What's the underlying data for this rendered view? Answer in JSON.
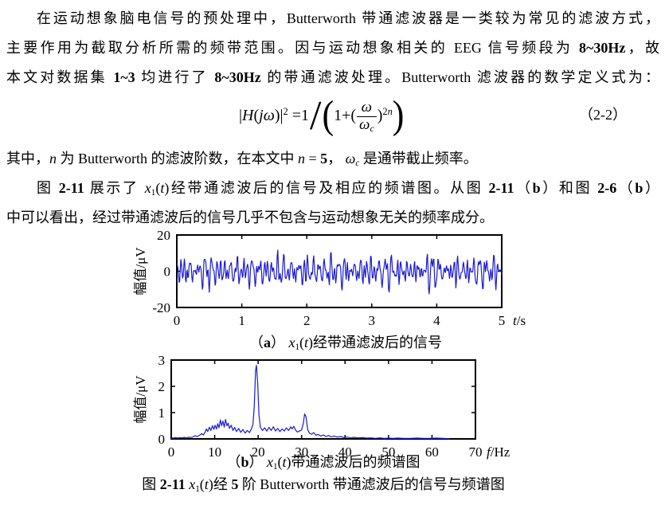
{
  "colors": {
    "background": "#ffffff",
    "text": "#000000",
    "axis": "#000000",
    "signal_blue": "#1a1ad2"
  },
  "body": {
    "l1": [
      {
        "t": "在运动想象脑电信号的预处理中，Butterworth 带通滤波器是一类较为常见的滤波方式，"
      }
    ],
    "l2": [
      {
        "t": "主要作用为截取分析所需的频带范围。因与运动想象相关的 EEG 信号频段为 "
      },
      {
        "t": "8~30Hz",
        "c": "b"
      },
      {
        "t": "，故"
      }
    ],
    "l3": [
      {
        "t": "本文对数据集 "
      },
      {
        "t": "1~3",
        "c": "b"
      },
      {
        "t": " 均进行了 "
      },
      {
        "t": "8~30Hz",
        "c": "b"
      },
      {
        "t": " 的带通滤波处理。Butterworth 滤波器的数学定义式为："
      }
    ],
    "l4": [
      {
        "t": "其中，"
      },
      {
        "t": "n",
        "c": "i"
      },
      {
        "t": " 为 Butterworth 的滤波阶数，在本文中 "
      },
      {
        "t": "n",
        "c": "i"
      },
      {
        "t": " = "
      },
      {
        "t": "5",
        "c": "b"
      },
      {
        "t": "， "
      },
      {
        "t": "ω",
        "c": "i"
      },
      {
        "t": "c",
        "c": "sub i"
      },
      {
        "t": " 是通带截止频率。"
      }
    ],
    "l5": [
      {
        "t": "图 "
      },
      {
        "t": "2-11",
        "c": "b"
      },
      {
        "t": " 展示了 "
      },
      {
        "t": "x",
        "c": "i"
      },
      {
        "t": "1",
        "c": "sub"
      },
      {
        "t": "("
      },
      {
        "t": "t",
        "c": "i"
      },
      {
        "t": ")"
      },
      {
        "t": "经带通滤波后的信号及相应的频谱图。从图 "
      },
      {
        "t": "2-11",
        "c": "b"
      },
      {
        "t": "（"
      },
      {
        "t": "b",
        "c": "b"
      },
      {
        "t": "）和图 "
      },
      {
        "t": "2-6",
        "c": "b"
      },
      {
        "t": "（"
      },
      {
        "t": "b",
        "c": "b"
      },
      {
        "t": "）"
      }
    ],
    "l6": [
      {
        "t": "中可以看出，经过带通滤波后的信号几乎不包含与运动想象无关的频率成分。"
      }
    ]
  },
  "formula": {
    "lhs": [
      {
        "t": "|"
      },
      {
        "t": "H",
        "c": "i"
      },
      {
        "t": "("
      },
      {
        "t": "j",
        "c": "i"
      },
      {
        "t": "ω",
        "c": "i"
      },
      {
        "t": ")|"
      },
      {
        "t": "2",
        "c": "sup"
      },
      {
        "t": " ="
      },
      {
        "t": "1"
      }
    ],
    "slash": "/",
    "lparen": "(",
    "rparen": ")",
    "inner_pre": [
      {
        "t": "1+("
      }
    ],
    "num": [
      {
        "t": "ω",
        "c": "i"
      }
    ],
    "den": [
      {
        "t": "ω",
        "c": "i"
      },
      {
        "t": "c",
        "c": "sub i"
      }
    ],
    "inner_post": [
      {
        "t": ")"
      },
      {
        "t": "2",
        "c": "sup"
      },
      {
        "t": "n",
        "c": "sup i"
      }
    ],
    "number": "（2-2）"
  },
  "captions": {
    "a": [
      {
        "t": "（"
      },
      {
        "t": "a",
        "c": "b"
      },
      {
        "t": "）  "
      },
      {
        "t": "x",
        "c": "i"
      },
      {
        "t": "1",
        "c": "sub"
      },
      {
        "t": "("
      },
      {
        "t": "t",
        "c": "i"
      },
      {
        "t": ")"
      },
      {
        "t": "经带通滤波后的信号"
      }
    ],
    "b": [
      {
        "t": "（"
      },
      {
        "t": "b",
        "c": "b"
      },
      {
        "t": "）  "
      },
      {
        "t": "x",
        "c": "i"
      },
      {
        "t": "1",
        "c": "sub"
      },
      {
        "t": "("
      },
      {
        "t": "t",
        "c": "i"
      },
      {
        "t": ")"
      },
      {
        "t": "带通滤波后的频谱图"
      }
    ],
    "figure": [
      {
        "t": "图 "
      },
      {
        "t": "2-11",
        "c": "b"
      },
      {
        "t": "  "
      },
      {
        "t": "x",
        "c": "i"
      },
      {
        "t": "1",
        "c": "sub"
      },
      {
        "t": "("
      },
      {
        "t": "t",
        "c": "i"
      },
      {
        "t": ")"
      },
      {
        "t": "经 "
      },
      {
        "t": "5",
        "c": "b"
      },
      {
        "t": " 阶 Butterworth 带通滤波后的信号与频谱图"
      }
    ]
  },
  "chart_data": [
    {
      "id": "time_signal",
      "type": "line",
      "title": "x1(t) 经带通滤波后的信号",
      "xlabel": [
        {
          "t": "t",
          "c": "i"
        },
        {
          "t": "/s"
        }
      ],
      "ylabel": "幅值/μV",
      "xlim": [
        0,
        5
      ],
      "ylim": [
        -20,
        20
      ],
      "xticks": [
        0,
        1,
        2,
        3,
        4,
        5
      ],
      "yticks": [
        -20,
        0,
        20
      ],
      "grid": false,
      "line_color": "#1a1ad2",
      "samples": 560,
      "signal_components": [
        {
          "f": 8.3,
          "a": 1.9,
          "p": 3.9
        },
        {
          "f": 9.7,
          "a": 2.4,
          "p": 0.5
        },
        {
          "f": 10.9,
          "a": 2.1,
          "p": 2.1
        },
        {
          "f": 12.6,
          "a": 1.9,
          "p": 4.2
        },
        {
          "f": 14.8,
          "a": 1.3,
          "p": 1.0
        },
        {
          "f": 16.4,
          "a": 1.4,
          "p": 1.3
        },
        {
          "f": 19.5,
          "a": 3.0,
          "p": 0.2
        },
        {
          "f": 21.6,
          "a": 1.1,
          "p": 5.6
        },
        {
          "f": 24.3,
          "a": 0.9,
          "p": 2.9
        },
        {
          "f": 27.1,
          "a": 0.8,
          "p": 0.8
        },
        {
          "f": 30.8,
          "a": 1.5,
          "p": 2.7
        }
      ]
    },
    {
      "id": "spectrum",
      "type": "line",
      "title": "x1(t) 带通滤波后的频谱图",
      "xlabel": [
        {
          "t": "f",
          "c": "i"
        },
        {
          "t": "/Hz"
        }
      ],
      "ylabel": "幅值/μV",
      "xlim": [
        0,
        70
      ],
      "ylim": [
        0,
        3
      ],
      "xticks": [
        0,
        10,
        20,
        30,
        40,
        50,
        60,
        70
      ],
      "yticks": [
        0,
        1,
        2,
        3
      ],
      "grid": false,
      "line_color": "#1a1ad2",
      "points": [
        [
          0,
          0.04
        ],
        [
          0.5,
          0.03
        ],
        [
          1,
          0.05
        ],
        [
          1.5,
          0.03
        ],
        [
          2,
          0.05
        ],
        [
          2.5,
          0.04
        ],
        [
          3,
          0.06
        ],
        [
          3.5,
          0.04
        ],
        [
          4,
          0.06
        ],
        [
          4.5,
          0.05
        ],
        [
          5,
          0.08
        ],
        [
          5.5,
          0.12
        ],
        [
          6,
          0.09
        ],
        [
          6.5,
          0.14
        ],
        [
          7,
          0.2
        ],
        [
          7.4,
          0.15
        ],
        [
          7.8,
          0.26
        ],
        [
          8.1,
          0.38
        ],
        [
          8.4,
          0.28
        ],
        [
          8.8,
          0.45
        ],
        [
          9.1,
          0.32
        ],
        [
          9.5,
          0.5
        ],
        [
          9.8,
          0.36
        ],
        [
          10.1,
          0.52
        ],
        [
          10.4,
          0.38
        ],
        [
          10.7,
          0.58
        ],
        [
          11,
          0.42
        ],
        [
          11.3,
          0.72
        ],
        [
          11.6,
          0.5
        ],
        [
          11.9,
          0.68
        ],
        [
          12.2,
          0.45
        ],
        [
          12.5,
          0.74
        ],
        [
          12.8,
          0.5
        ],
        [
          13.1,
          0.6
        ],
        [
          13.4,
          0.4
        ],
        [
          13.8,
          0.52
        ],
        [
          14.2,
          0.32
        ],
        [
          14.6,
          0.44
        ],
        [
          15,
          0.28
        ],
        [
          15.5,
          0.4
        ],
        [
          16,
          0.25
        ],
        [
          16.5,
          0.36
        ],
        [
          17,
          0.22
        ],
        [
          17.5,
          0.32
        ],
        [
          18,
          0.24
        ],
        [
          18.4,
          0.36
        ],
        [
          18.8,
          0.55
        ],
        [
          19.1,
          1.2
        ],
        [
          19.4,
          2.6
        ],
        [
          19.6,
          2.8
        ],
        [
          19.9,
          2.1
        ],
        [
          20.2,
          0.9
        ],
        [
          20.5,
          0.45
        ],
        [
          21,
          0.32
        ],
        [
          21.5,
          0.42
        ],
        [
          22,
          0.3
        ],
        [
          22.5,
          0.44
        ],
        [
          23,
          0.32
        ],
        [
          23.5,
          0.46
        ],
        [
          24,
          0.3
        ],
        [
          24.5,
          0.4
        ],
        [
          25,
          0.28
        ],
        [
          25.5,
          0.38
        ],
        [
          26,
          0.3
        ],
        [
          26.5,
          0.42
        ],
        [
          27,
          0.32
        ],
        [
          27.5,
          0.46
        ],
        [
          27.8,
          0.38
        ],
        [
          28.2,
          0.48
        ],
        [
          28.6,
          0.34
        ],
        [
          29,
          0.26
        ],
        [
          29.5,
          0.3
        ],
        [
          30,
          0.34
        ],
        [
          30.4,
          0.6
        ],
        [
          30.7,
          0.95
        ],
        [
          31,
          0.85
        ],
        [
          31.4,
          0.35
        ],
        [
          31.8,
          0.22
        ],
        [
          32.3,
          0.18
        ],
        [
          32.8,
          0.24
        ],
        [
          33.3,
          0.14
        ],
        [
          33.8,
          0.17
        ],
        [
          34.4,
          0.11
        ],
        [
          35,
          0.15
        ],
        [
          35.6,
          0.09
        ],
        [
          36.2,
          0.13
        ],
        [
          36.8,
          0.08
        ],
        [
          37.5,
          0.11
        ],
        [
          38.2,
          0.07
        ],
        [
          39,
          0.09
        ],
        [
          39.8,
          0.05
        ],
        [
          40.5,
          0.07
        ],
        [
          41.3,
          0.04
        ],
        [
          42,
          0.06
        ],
        [
          43,
          0.04
        ],
        [
          44,
          0.05
        ],
        [
          45,
          0.03
        ],
        [
          46,
          0.04
        ],
        [
          47,
          0.02
        ],
        [
          48,
          0.04
        ],
        [
          49,
          0.02
        ],
        [
          50,
          0.03
        ],
        [
          51,
          0.02
        ],
        [
          52,
          0.03
        ],
        [
          53.5,
          0.02
        ],
        [
          55,
          0.02
        ],
        [
          56.5,
          0.03
        ],
        [
          58,
          0.02
        ],
        [
          59.5,
          0.02
        ],
        [
          61,
          0.03
        ],
        [
          62.5,
          0.02
        ],
        [
          64,
          0.01
        ]
      ]
    }
  ]
}
